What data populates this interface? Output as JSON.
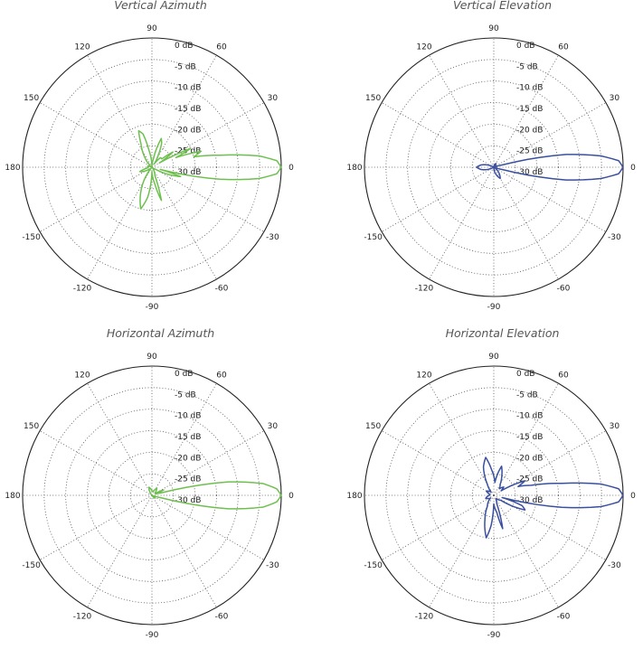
{
  "rlabels": [
    "0 dB",
    "-5 dB",
    "-10 dB",
    "-15 dB",
    "-20 dB",
    "-25 dB",
    "-30 dB"
  ],
  "angle_labels": [
    "90",
    "60",
    "30",
    "0",
    "-30",
    "-60",
    "-90",
    "-120",
    "-150",
    "180",
    "150",
    "120"
  ],
  "colors": {
    "green": "#6ec04e",
    "blue": "#3a4f9e"
  },
  "chart_data": [
    {
      "type": "polar",
      "title": "Vertical Azimuth",
      "color": "#6ec04e",
      "r_range_db": [
        -30,
        0
      ],
      "angle_step_deg": 30,
      "series": [
        {
          "points": [
            [
              -180,
              -29
            ],
            [
              -170,
              -29
            ],
            [
              -160,
              -27
            ],
            [
              -145,
              -29
            ],
            [
              -130,
              -30
            ],
            [
              -115,
              -24
            ],
            [
              -105,
              -20
            ],
            [
              -98,
              -23
            ],
            [
              -90,
              -29
            ],
            [
              -80,
              -26
            ],
            [
              -74,
              -22
            ],
            [
              -70,
              -28
            ],
            [
              -60,
              -29
            ],
            [
              -50,
              -30
            ],
            [
              -40,
              -30
            ],
            [
              -30,
              -29
            ],
            [
              -22,
              -25
            ],
            [
              -18,
              -23
            ],
            [
              -15,
              -28
            ],
            [
              -10,
              -14
            ],
            [
              -6,
              -5
            ],
            [
              -3,
              -1
            ],
            [
              0,
              0
            ],
            [
              3,
              -1
            ],
            [
              6,
              -5
            ],
            [
              10,
              -14
            ],
            [
              14,
              -20
            ],
            [
              18,
              -18
            ],
            [
              22,
              -24
            ],
            [
              26,
              -20
            ],
            [
              30,
              -28
            ],
            [
              36,
              -24
            ],
            [
              40,
              -27
            ],
            [
              48,
              -27
            ],
            [
              55,
              -29
            ],
            [
              62,
              -27
            ],
            [
              68,
              -24
            ],
            [
              72,
              -23
            ],
            [
              80,
              -28
            ],
            [
              90,
              -30
            ],
            [
              100,
              -26
            ],
            [
              105,
              -22
            ],
            [
              110,
              -21
            ],
            [
              115,
              -24
            ],
            [
              125,
              -27
            ],
            [
              135,
              -29
            ],
            [
              150,
              -30
            ],
            [
              165,
              -29
            ],
            [
              180,
              -29
            ]
          ]
        }
      ]
    },
    {
      "type": "polar",
      "title": "Vertical Elevation",
      "color": "#3a4f9e",
      "r_range_db": [
        -30,
        0
      ],
      "angle_step_deg": 30,
      "series": [
        {
          "points": [
            [
              -180,
              -26
            ],
            [
              -170,
              -27
            ],
            [
              -150,
              -30
            ],
            [
              -120,
              -30
            ],
            [
              -90,
              -30
            ],
            [
              -70,
              -28
            ],
            [
              -60,
              -27
            ],
            [
              -50,
              -28
            ],
            [
              -30,
              -30
            ],
            [
              -20,
              -30
            ],
            [
              -15,
              -28
            ],
            [
              -10,
              -13
            ],
            [
              -6,
              -5
            ],
            [
              -3,
              -1
            ],
            [
              0,
              0
            ],
            [
              3,
              -1
            ],
            [
              6,
              -5
            ],
            [
              10,
              -13
            ],
            [
              15,
              -28
            ],
            [
              20,
              -30
            ],
            [
              30,
              -30
            ],
            [
              60,
              -29
            ],
            [
              90,
              -30
            ],
            [
              120,
              -30
            ],
            [
              150,
              -30
            ],
            [
              170,
              -27
            ],
            [
              180,
              -26
            ]
          ]
        }
      ]
    },
    {
      "type": "polar",
      "title": "Horizontal Azimuth",
      "color": "#6ec04e",
      "r_range_db": [
        -30,
        0
      ],
      "angle_step_deg": 30,
      "series": [
        {
          "points": [
            [
              -180,
              -30
            ],
            [
              -150,
              -30
            ],
            [
              -120,
              -30
            ],
            [
              -90,
              -30
            ],
            [
              -60,
              -30
            ],
            [
              -40,
              -29
            ],
            [
              -30,
              -30
            ],
            [
              -20,
              -30
            ],
            [
              -15,
              -28
            ],
            [
              -10,
              -12
            ],
            [
              -6,
              -4
            ],
            [
              -3,
              -1
            ],
            [
              0,
              0
            ],
            [
              3,
              -1
            ],
            [
              6,
              -4
            ],
            [
              10,
              -12
            ],
            [
              15,
              -28
            ],
            [
              20,
              -29
            ],
            [
              25,
              -27
            ],
            [
              30,
              -29
            ],
            [
              40,
              -29
            ],
            [
              55,
              -28
            ],
            [
              70,
              -29
            ],
            [
              90,
              -29
            ],
            [
              110,
              -28
            ],
            [
              130,
              -30
            ],
            [
              150,
              -30
            ],
            [
              180,
              -30
            ]
          ]
        }
      ]
    },
    {
      "type": "polar",
      "title": "Horizontal Elevation",
      "color": "#3a4f9e",
      "r_range_db": [
        -30,
        0
      ],
      "angle_step_deg": 30,
      "series": [
        {
          "points": [
            [
              -180,
              -29
            ],
            [
              -160,
              -28
            ],
            [
              -140,
              -29
            ],
            [
              -120,
              -27
            ],
            [
              -110,
              -24
            ],
            [
              -100,
              -20
            ],
            [
              -95,
              -23
            ],
            [
              -90,
              -28
            ],
            [
              -80,
              -26
            ],
            [
              -75,
              -22
            ],
            [
              -70,
              -28
            ],
            [
              -60,
              -29
            ],
            [
              -50,
              -29
            ],
            [
              -35,
              -28
            ],
            [
              -25,
              -22
            ],
            [
              -20,
              -23
            ],
            [
              -15,
              -28
            ],
            [
              -10,
              -14
            ],
            [
              -6,
              -5
            ],
            [
              -3,
              -1
            ],
            [
              0,
              0
            ],
            [
              3,
              -1
            ],
            [
              6,
              -5
            ],
            [
              10,
              -14
            ],
            [
              15,
              -21
            ],
            [
              20,
              -24
            ],
            [
              25,
              -22
            ],
            [
              32,
              -28
            ],
            [
              40,
              -27
            ],
            [
              50,
              -28
            ],
            [
              60,
              -27
            ],
            [
              68,
              -25
            ],
            [
              75,
              -23
            ],
            [
              85,
              -27
            ],
            [
              95,
              -24
            ],
            [
              102,
              -21
            ],
            [
              110,
              -23
            ],
            [
              120,
              -27
            ],
            [
              130,
              -29
            ],
            [
              150,
              -28
            ],
            [
              165,
              -29
            ],
            [
              180,
              -29
            ]
          ]
        }
      ]
    }
  ]
}
